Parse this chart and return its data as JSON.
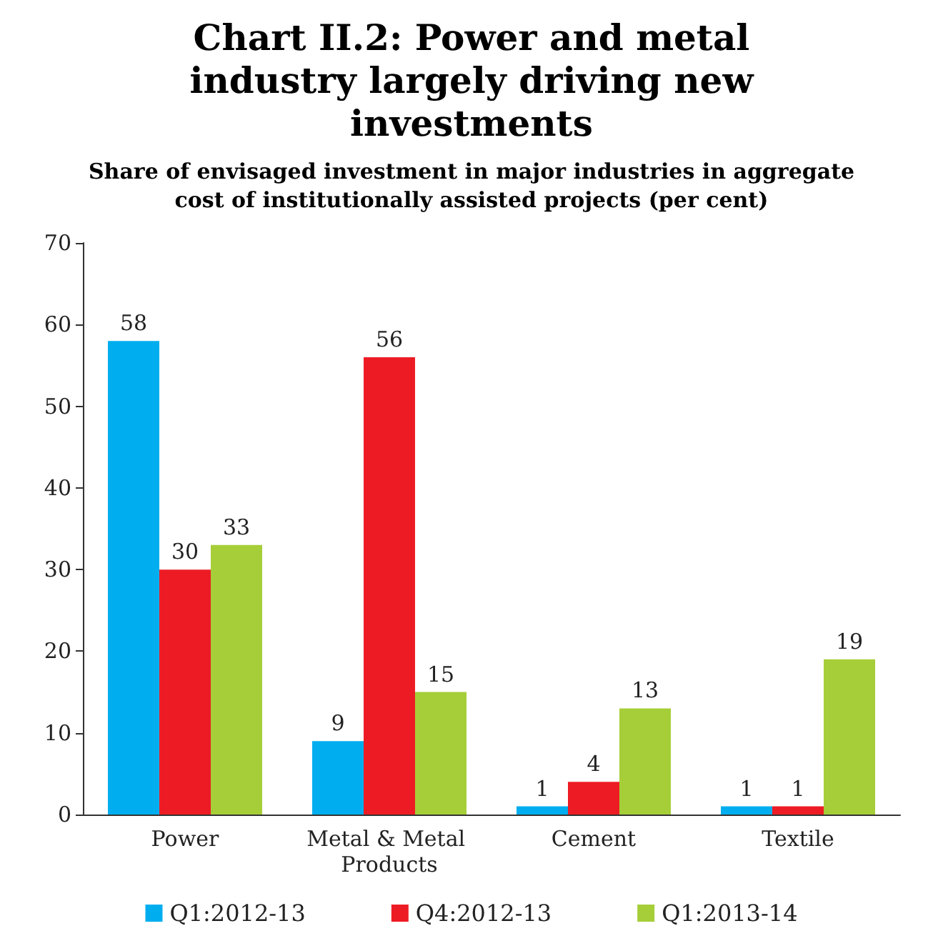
{
  "chart_data": {
    "type": "bar",
    "title": "Chart II.2: Power and metal industry largely driving new investments",
    "subtitle": "Share of envisaged investment in major industries in aggregate cost of institutionally assisted projects (per cent)",
    "categories": [
      "Power",
      "Metal & Metal Products",
      "Cement",
      "Textile"
    ],
    "series": [
      {
        "name": "Q1:2012-13",
        "color": "#00aeef",
        "values": [
          58,
          9,
          1,
          1
        ]
      },
      {
        "name": "Q4:2012-13",
        "color": "#ed1c24",
        "values": [
          30,
          56,
          4,
          1
        ]
      },
      {
        "name": "Q1:2013-14",
        "color": "#a6ce39",
        "values": [
          33,
          15,
          13,
          19
        ]
      }
    ],
    "ylim": [
      0,
      70
    ],
    "yticks": [
      0,
      10,
      20,
      30,
      40,
      50,
      60,
      70
    ],
    "grid": false,
    "legend": "bottom",
    "data_labels": true
  }
}
